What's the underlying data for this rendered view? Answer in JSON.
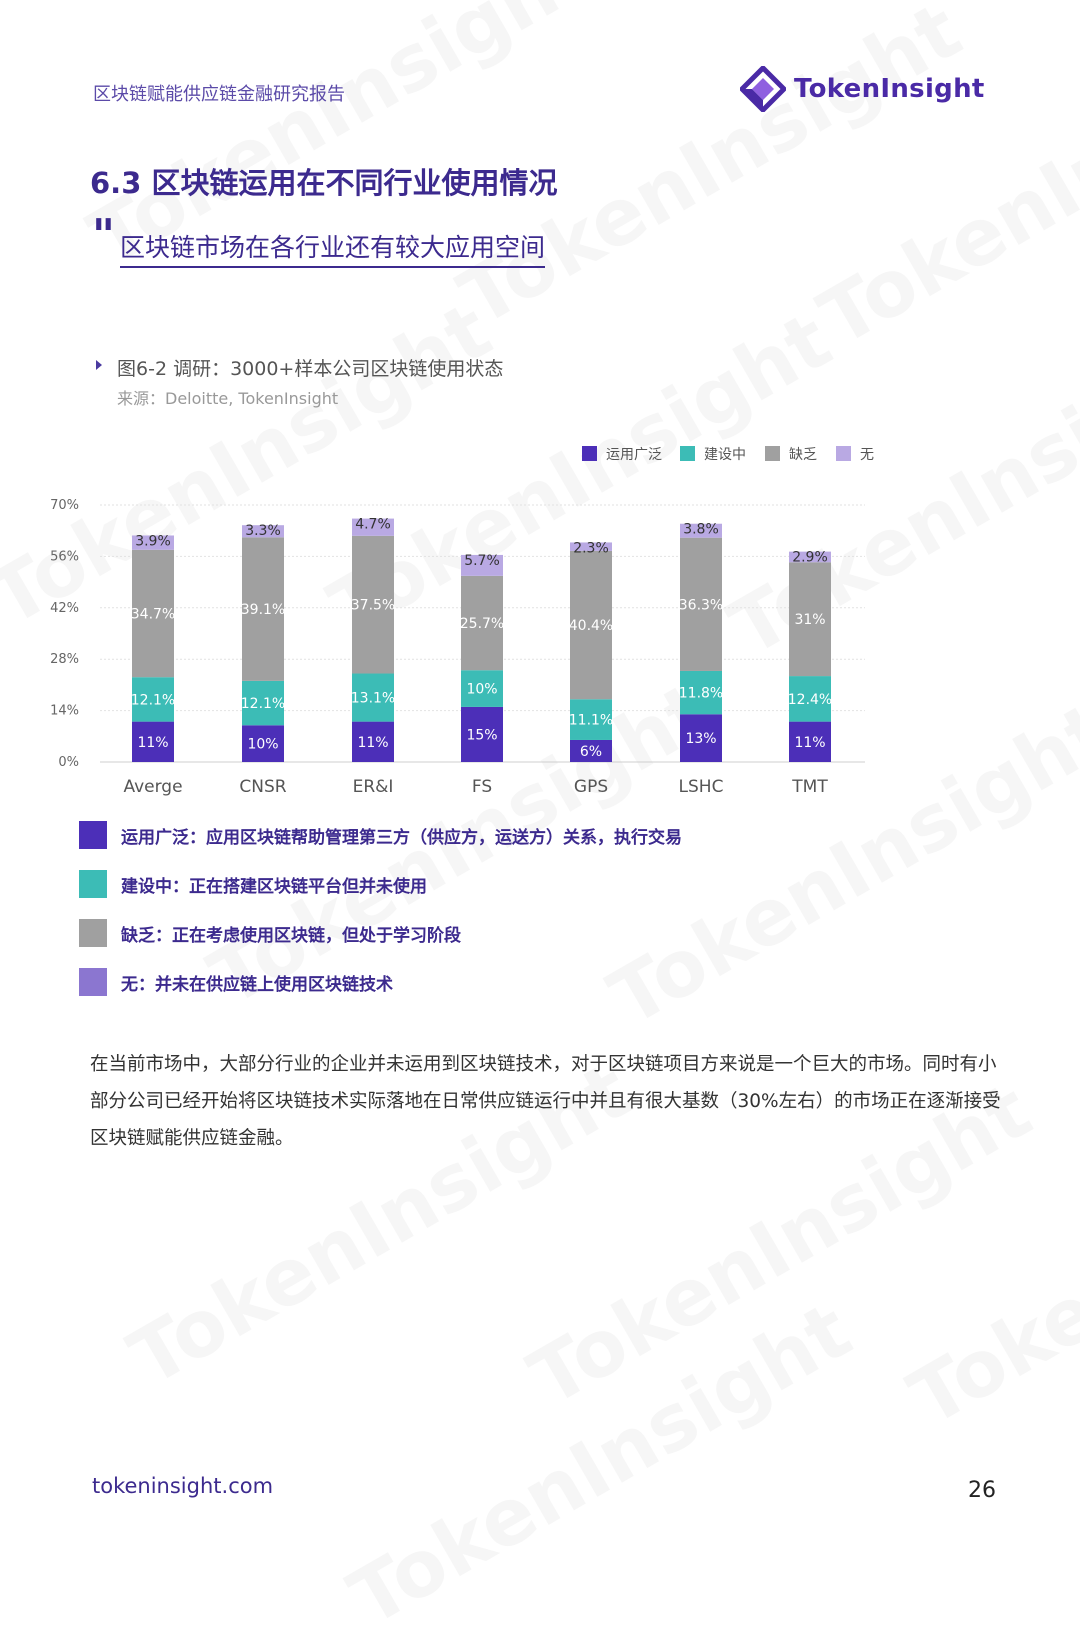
{
  "header": {
    "report_title": "区块链赋能供应链金融研究报告",
    "logo_text": "TokenInsight"
  },
  "section": {
    "title": "6.3 区块链运用在不同行业使用情况",
    "subtitle": "区块链市场在各行业还有较大应用空间"
  },
  "figure": {
    "title": "图6-2 调研：3000+样本公司区块链使用状态",
    "source": "来源：Deloitte, TokenInsight"
  },
  "colors": {
    "widespread": "#4c2fb8",
    "building": "#3cbcb6",
    "lacking": "#a0a0a0",
    "none": "#b9a9e3",
    "accent": "#3c2a8e"
  },
  "chart_data": {
    "type": "bar",
    "stacked": true,
    "categories": [
      "Averge",
      "CNSR",
      "ER&I",
      "FS",
      "GPS",
      "LSHC",
      "TMT"
    ],
    "series": [
      {
        "name": "运用广泛",
        "values": [
          11,
          10,
          11,
          15,
          6,
          13,
          11
        ],
        "labels": [
          "11%",
          "10%",
          "11%",
          "15%",
          "6%",
          "13%",
          "11%"
        ]
      },
      {
        "name": "建设中",
        "values": [
          12.1,
          12.1,
          13.1,
          10,
          11.1,
          11.8,
          12.4
        ],
        "labels": [
          "12.1%",
          "12.1%",
          "13.1%",
          "10%",
          "11.1%",
          "11.8%",
          "12.4%"
        ]
      },
      {
        "name": "缺乏",
        "values": [
          34.7,
          39.1,
          37.5,
          25.7,
          40.4,
          36.3,
          31
        ],
        "labels": [
          "34.7%",
          "39.1%",
          "37.5%",
          "25.7%",
          "40.4%",
          "36.3%",
          "31%"
        ]
      },
      {
        "name": "无",
        "values": [
          3.9,
          3.3,
          4.7,
          5.7,
          2.3,
          3.8,
          2.9
        ],
        "labels": [
          "3.9%",
          "3.3%",
          "4.7%",
          "5.7%",
          "2.3%",
          "3.8%",
          "2.9%"
        ]
      }
    ],
    "y_ticks": [
      "0%",
      "14%",
      "28%",
      "42%",
      "56%",
      "70%"
    ],
    "ylim": [
      0,
      70
    ],
    "grid": true,
    "legend_position": "top-right"
  },
  "definitions": [
    {
      "text": "运用广泛：应用区块链帮助管理第三方（供应方，运送方）关系，执行交易"
    },
    {
      "text": "建设中：正在搭建区块链平台但并未使用"
    },
    {
      "text": "缺乏：正在考虑使用区块链，但处于学习阶段"
    },
    {
      "text": "无：并未在供应链上使用区块链技术"
    }
  ],
  "body": {
    "paragraph": "在当前市场中，大部分行业的企业并未运用到区块链技术，对于区块链项目方来说是一个巨大的市场。同时有小部分公司已经开始将区块链技术实际落地在日常供应链运行中并且有很大基数（30%左右）的市场正在逐渐接受区块链赋能供应链金融。"
  },
  "footer": {
    "url": "tokeninsight.com",
    "page_number": "26"
  }
}
